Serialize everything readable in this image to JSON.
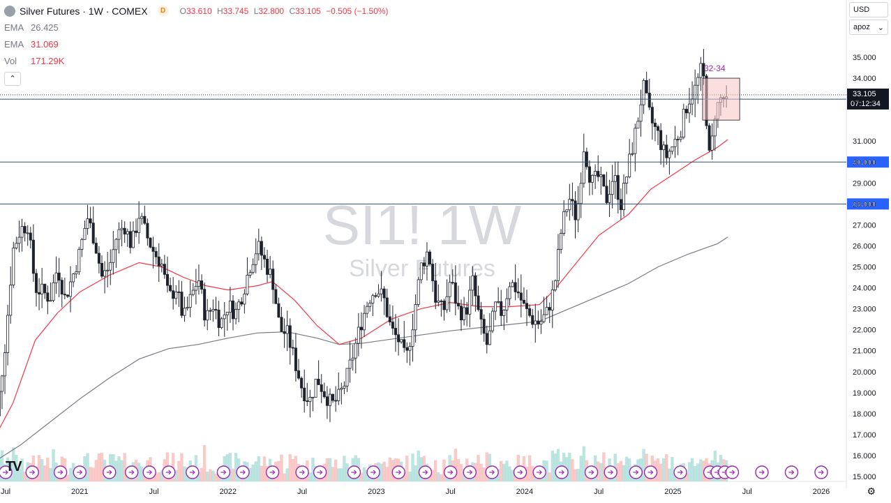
{
  "header": {
    "symbol_title": "Silver Futures · 1W · COMEX",
    "exchange_badge": "D",
    "ohlc": {
      "o_label": "O",
      "o": "33.610",
      "h_label": "H",
      "h": "33.745",
      "l_label": "L",
      "l": "32.800",
      "c_label": "C",
      "c": "33.105",
      "change": "−0.505 (−1.50%)"
    }
  },
  "indicators": [
    {
      "label": "EMA",
      "value": "26.425",
      "color": "#787b86"
    },
    {
      "label": "EMA",
      "value": "31.069",
      "color": "#f23645"
    },
    {
      "label": "Vol",
      "value": "171.29K",
      "color": "#f23645"
    }
  ],
  "top_right": {
    "currency": "USD",
    "scale_mode": "apoz"
  },
  "watermark": {
    "ticker": "SI1! 1W",
    "name": "Silver Futures"
  },
  "annotation": {
    "text": "32-34"
  },
  "price_labels": {
    "last": "33.105",
    "countdown": "07:12:34",
    "h1": "33.000",
    "h2": "30.000",
    "h3": "28.000"
  },
  "colors": {
    "up": "#26a69a",
    "down": "#ef5350",
    "ema50": "#f23645",
    "ema200": "#787b86",
    "hline": "#2a4f7a",
    "box": "#f8c4c4"
  },
  "chart_data": {
    "type": "candlestick",
    "y_ticks": [
      "35.000",
      "34.000",
      "33.000",
      "31.000",
      "30.000",
      "29.000",
      "28.000",
      "27.000",
      "26.000",
      "25.000",
      "24.000",
      "23.000",
      "22.000",
      "21.000",
      "20.000",
      "19.000",
      "18.000",
      "17.000",
      "16.000",
      "15.000"
    ],
    "x_ticks": [
      "Jul",
      "2021",
      "Jul",
      "2022",
      "Jul",
      "2023",
      "Jul",
      "2024",
      "Jul",
      "2025",
      "Jul",
      "2026"
    ],
    "horizontal_lines": [
      33.0,
      30.0,
      28.0
    ],
    "resistance_box": {
      "low": 32,
      "high": 34,
      "label": "32-34"
    },
    "ema_50": [
      [
        2020.4,
        16.5
      ],
      [
        2020.55,
        18.5
      ],
      [
        2020.7,
        21.5
      ],
      [
        2020.85,
        22.8
      ],
      [
        2021.0,
        23.8
      ],
      [
        2021.2,
        24.6
      ],
      [
        2021.4,
        25.2
      ],
      [
        2021.55,
        25.0
      ],
      [
        2021.7,
        24.5
      ],
      [
        2021.85,
        24.1
      ],
      [
        2022.0,
        23.9
      ],
      [
        2022.2,
        24.1
      ],
      [
        2022.3,
        24.3
      ],
      [
        2022.45,
        23.4
      ],
      [
        2022.6,
        22.2
      ],
      [
        2022.75,
        21.3
      ],
      [
        2022.9,
        21.6
      ],
      [
        2023.1,
        22.5
      ],
      [
        2023.3,
        23.0
      ],
      [
        2023.5,
        23.3
      ],
      [
        2023.7,
        23.1
      ],
      [
        2023.9,
        23.1
      ],
      [
        2024.1,
        23.2
      ],
      [
        2024.2,
        23.9
      ],
      [
        2024.35,
        25.2
      ],
      [
        2024.5,
        26.5
      ],
      [
        2024.7,
        27.5
      ],
      [
        2024.85,
        28.7
      ],
      [
        2025.0,
        29.4
      ],
      [
        2025.15,
        30.1
      ],
      [
        2025.3,
        30.7
      ],
      [
        2025.37,
        31.069
      ]
    ],
    "ema_200": [
      [
        2020.4,
        15.6
      ],
      [
        2020.6,
        16.5
      ],
      [
        2020.8,
        17.6
      ],
      [
        2021.0,
        18.7
      ],
      [
        2021.2,
        19.7
      ],
      [
        2021.4,
        20.6
      ],
      [
        2021.6,
        21.1
      ],
      [
        2021.8,
        21.3
      ],
      [
        2022.0,
        21.6
      ],
      [
        2022.2,
        21.85
      ],
      [
        2022.4,
        21.9
      ],
      [
        2022.6,
        21.6
      ],
      [
        2022.75,
        21.3
      ],
      [
        2022.9,
        21.35
      ],
      [
        2023.1,
        21.55
      ],
      [
        2023.3,
        21.75
      ],
      [
        2023.5,
        21.95
      ],
      [
        2023.7,
        22.1
      ],
      [
        2023.9,
        22.25
      ],
      [
        2024.1,
        22.4
      ],
      [
        2024.3,
        23.0
      ],
      [
        2024.5,
        23.6
      ],
      [
        2024.7,
        24.2
      ],
      [
        2024.9,
        25.0
      ],
      [
        2025.1,
        25.6
      ],
      [
        2025.3,
        26.1
      ],
      [
        2025.37,
        26.425
      ]
    ],
    "price_path": [
      [
        2020.4,
        15.5
      ],
      [
        2020.45,
        18.5
      ],
      [
        2020.5,
        21.5
      ],
      [
        2020.55,
        25.8
      ],
      [
        2020.6,
        26.8
      ],
      [
        2020.65,
        27.0
      ],
      [
        2020.7,
        24.0
      ],
      [
        2020.75,
        23.8
      ],
      [
        2020.8,
        23.5
      ],
      [
        2020.85,
        25.0
      ],
      [
        2020.9,
        23.5
      ],
      [
        2020.95,
        24.5
      ],
      [
        2021.0,
        25.7
      ],
      [
        2021.05,
        27.4
      ],
      [
        2021.1,
        26.3
      ],
      [
        2021.15,
        24.5
      ],
      [
        2021.2,
        25.0
      ],
      [
        2021.25,
        26.5
      ],
      [
        2021.3,
        27.0
      ],
      [
        2021.35,
        26.0
      ],
      [
        2021.4,
        27.5
      ],
      [
        2021.45,
        26.5
      ],
      [
        2021.5,
        25.7
      ],
      [
        2021.55,
        25.2
      ],
      [
        2021.6,
        23.5
      ],
      [
        2021.65,
        24.0
      ],
      [
        2021.7,
        22.5
      ],
      [
        2021.75,
        23.5
      ],
      [
        2021.8,
        24.5
      ],
      [
        2021.85,
        22.5
      ],
      [
        2021.9,
        23.2
      ],
      [
        2021.95,
        22.3
      ],
      [
        2022.0,
        23.2
      ],
      [
        2022.05,
        22.8
      ],
      [
        2022.1,
        23.8
      ],
      [
        2022.15,
        25.1
      ],
      [
        2022.2,
        26.0
      ],
      [
        2022.25,
        25.2
      ],
      [
        2022.3,
        24.4
      ],
      [
        2022.35,
        22.0
      ],
      [
        2022.4,
        21.8
      ],
      [
        2022.45,
        20.5
      ],
      [
        2022.5,
        19.2
      ],
      [
        2022.55,
        18.6
      ],
      [
        2022.6,
        19.7
      ],
      [
        2022.65,
        19.0
      ],
      [
        2022.7,
        18.4
      ],
      [
        2022.75,
        18.8
      ],
      [
        2022.8,
        19.7
      ],
      [
        2022.85,
        21.0
      ],
      [
        2022.9,
        22.4
      ],
      [
        2022.95,
        23.5
      ],
      [
        2023.0,
        24.0
      ],
      [
        2023.05,
        23.5
      ],
      [
        2023.1,
        22.0
      ],
      [
        2023.15,
        21.5
      ],
      [
        2023.2,
        20.5
      ],
      [
        2023.25,
        22.5
      ],
      [
        2023.3,
        25.0
      ],
      [
        2023.35,
        25.8
      ],
      [
        2023.4,
        23.5
      ],
      [
        2023.45,
        22.8
      ],
      [
        2023.5,
        24.4
      ],
      [
        2023.55,
        23.0
      ],
      [
        2023.6,
        22.7
      ],
      [
        2023.65,
        24.3
      ],
      [
        2023.7,
        22.3
      ],
      [
        2023.75,
        21.2
      ],
      [
        2023.8,
        23.1
      ],
      [
        2023.85,
        22.8
      ],
      [
        2023.9,
        24.3
      ],
      [
        2023.95,
        23.9
      ],
      [
        2024.0,
        23.0
      ],
      [
        2024.05,
        22.5
      ],
      [
        2024.1,
        22.3
      ],
      [
        2024.15,
        22.8
      ],
      [
        2024.2,
        24.0
      ],
      [
        2024.25,
        26.9
      ],
      [
        2024.3,
        28.3
      ],
      [
        2024.35,
        27.3
      ],
      [
        2024.4,
        30.8
      ],
      [
        2024.45,
        29.0
      ],
      [
        2024.5,
        29.3
      ],
      [
        2024.55,
        28.2
      ],
      [
        2024.6,
        29.4
      ],
      [
        2024.65,
        28.0
      ],
      [
        2024.7,
        29.8
      ],
      [
        2024.75,
        31.5
      ],
      [
        2024.8,
        33.6
      ],
      [
        2024.85,
        32.0
      ],
      [
        2024.9,
        31.3
      ],
      [
        2024.95,
        30.2
      ],
      [
        2025.0,
        30.8
      ],
      [
        2025.05,
        31.5
      ],
      [
        2025.1,
        32.9
      ],
      [
        2025.15,
        33.5
      ],
      [
        2025.2,
        34.6
      ],
      [
        2025.25,
        29.8
      ],
      [
        2025.28,
        32.3
      ],
      [
        2025.32,
        33.0
      ],
      [
        2025.37,
        33.1
      ]
    ]
  }
}
